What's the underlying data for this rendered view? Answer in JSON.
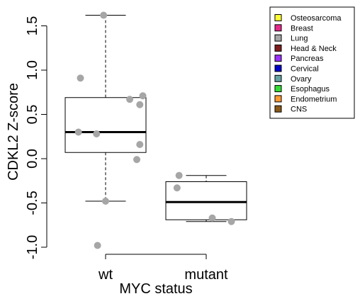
{
  "chart_data": {
    "type": "boxplot",
    "xlabel": "MYC status",
    "ylabel": "CDKL2 Z-score",
    "ylim": [
      -1.0,
      1.6
    ],
    "yticks": [
      -1.0,
      -0.5,
      0.0,
      0.5,
      1.0,
      1.5
    ],
    "ytick_labels": [
      "-1.0",
      "-0.5",
      "0.0",
      "0.5",
      "1.0",
      "1.5"
    ],
    "categories": [
      "wt",
      "mutant"
    ],
    "boxes": [
      {
        "name": "wt",
        "whisker_low": -0.48,
        "q1": 0.07,
        "median": 0.3,
        "q3": 0.69,
        "whisker_high": 1.62
      },
      {
        "name": "mutant",
        "whisker_low": -0.71,
        "q1": -0.69,
        "median": -0.49,
        "q3": -0.26,
        "whisker_high": -0.19
      }
    ],
    "points": [
      {
        "group": "wt",
        "x": 0.98,
        "y": 1.62
      },
      {
        "group": "wt",
        "x": 0.75,
        "y": 0.91
      },
      {
        "group": "wt",
        "x": 1.37,
        "y": 0.71
      },
      {
        "group": "wt",
        "x": 1.24,
        "y": 0.67
      },
      {
        "group": "wt",
        "x": 1.34,
        "y": 0.61
      },
      {
        "group": "wt",
        "x": 0.73,
        "y": 0.3
      },
      {
        "group": "wt",
        "x": 0.91,
        "y": 0.28
      },
      {
        "group": "wt",
        "x": 1.34,
        "y": 0.16
      },
      {
        "group": "wt",
        "x": 1.31,
        "y": -0.01
      },
      {
        "group": "wt",
        "x": 1.0,
        "y": -0.48
      },
      {
        "group": "wt",
        "x": 0.92,
        "y": -0.98
      },
      {
        "group": "mutant",
        "x": 1.73,
        "y": -0.19
      },
      {
        "group": "mutant",
        "x": 1.71,
        "y": -0.33
      },
      {
        "group": "mutant",
        "x": 2.06,
        "y": -0.67
      },
      {
        "group": "mutant",
        "x": 2.25,
        "y": -0.71
      }
    ],
    "point_color": "#a6a6a6",
    "legend_position": "top-right",
    "legend": [
      {
        "label": "Osteosarcoma",
        "color": "#ffff33"
      },
      {
        "label": "Breast",
        "color": "#e7298a"
      },
      {
        "label": "Lung",
        "color": "#a6a6a6"
      },
      {
        "label": "Head & Neck",
        "color": "#7f1d1d"
      },
      {
        "label": "Pancreas",
        "color": "#9b30ff"
      },
      {
        "label": "Cervical",
        "color": "#0000cd"
      },
      {
        "label": "Ovary",
        "color": "#66a3a3"
      },
      {
        "label": "Esophagus",
        "color": "#33dd33"
      },
      {
        "label": "Endometrium",
        "color": "#ff9933"
      },
      {
        "label": "CNS",
        "color": "#8b5a1a"
      }
    ]
  }
}
